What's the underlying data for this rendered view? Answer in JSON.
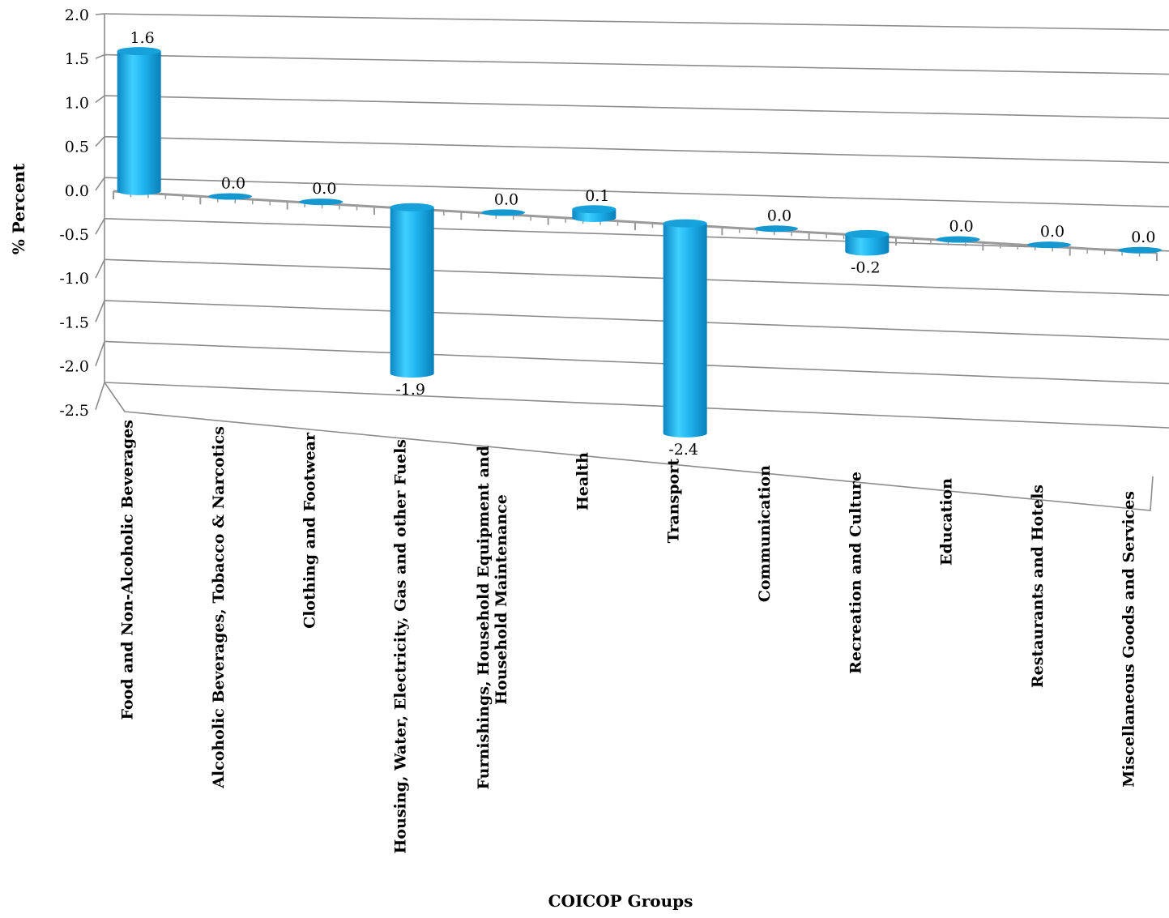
{
  "chart_data": {
    "type": "bar",
    "style": "3d-cylinder",
    "ylabel": "% Percent",
    "xlabel": "COICOP Groups",
    "ylim": [
      -2.5,
      2.0
    ],
    "yticks": [
      "2.0",
      "1.5",
      "1.0",
      "0.5",
      "0.0",
      "-0.5",
      "-1.0",
      "-1.5",
      "-2.0",
      "-2.5"
    ],
    "grid": true,
    "legend": "none",
    "bar_color": "#1aa7e0",
    "categories": [
      [
        "Food and Non-Alcoholic Beverages"
      ],
      [
        "Alcoholic Beverages, Tobacco & Narcotics"
      ],
      [
        "Clothing and Footwear"
      ],
      [
        "Housing, Water, Electricity, Gas and other Fuels"
      ],
      [
        "Furnishings, Household Equipment and",
        "Household Maintenance"
      ],
      [
        "Health"
      ],
      [
        "Transport"
      ],
      [
        "Communication"
      ],
      [
        "Recreation and Culture"
      ],
      [
        "Education"
      ],
      [
        "Restaurants and Hotels"
      ],
      [
        "Miscellaneous Goods and Services"
      ]
    ],
    "values": [
      1.6,
      0.0,
      0.0,
      -1.9,
      0.0,
      0.1,
      -2.4,
      0.0,
      -0.2,
      0.0,
      0.0,
      0.0
    ],
    "data_labels": [
      "1.6",
      "0.0",
      "0.0",
      "-1.9",
      "0.0",
      "0.1",
      "-2.4",
      "0.0",
      "-0.2",
      "0.0",
      "0.0",
      "0.0"
    ]
  }
}
